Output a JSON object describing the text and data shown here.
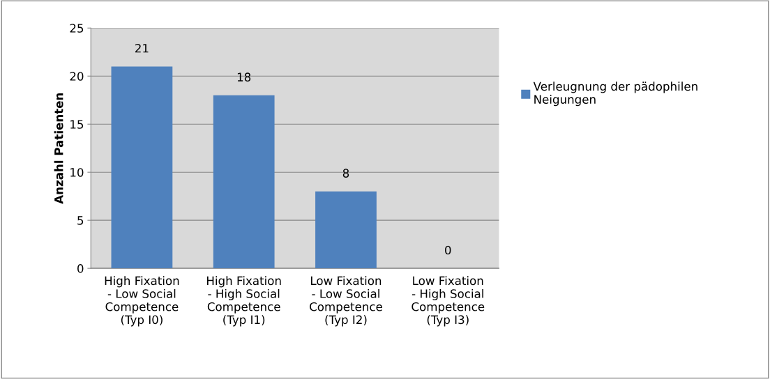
{
  "chart_data": {
    "type": "bar",
    "ylabel": "Anzahl Patienten",
    "categories": [
      "High Fixation\n- Low Social\nCompetence\n(Typ I0)",
      "High Fixation\n- High Social\nCompetence\n(Typ I1)",
      "Low Fixation\n- Low Social\nCompetence\n(Typ I2)",
      "Low Fixation\n- High Social\nCompetence\n(Typ I3)"
    ],
    "series": [
      {
        "name": "Verleugnung der pädophilen\nNeigungen",
        "color": "#4f81bd",
        "values": [
          21,
          18,
          8,
          0
        ]
      }
    ],
    "ylim": [
      0,
      25
    ],
    "yticks": [
      0,
      5,
      10,
      15,
      20,
      25
    ],
    "grid": "y",
    "legend": "right",
    "data_labels": true
  }
}
